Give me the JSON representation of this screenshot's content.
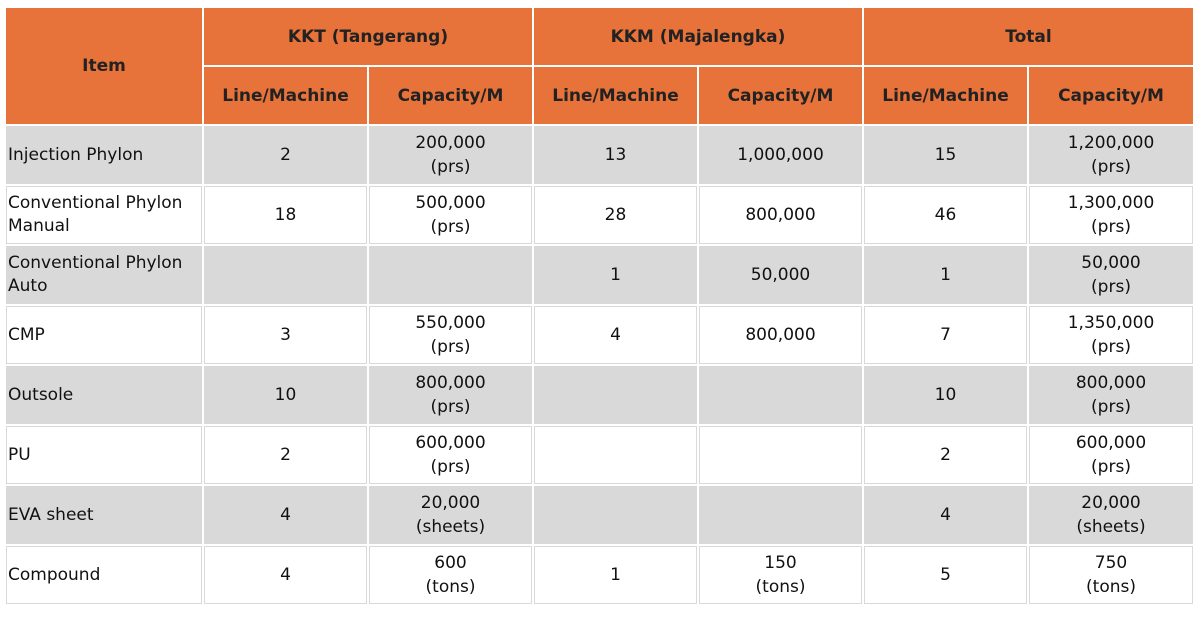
{
  "header": {
    "item": "Item",
    "groups": [
      "KKT (Tangerang)",
      "KKM (Majalengka)",
      "Total"
    ],
    "subheaders": [
      "Line/Machine",
      "Capacity/M",
      "Line/Machine",
      "Capacity/M",
      "Line/Machine",
      "Capacity/M"
    ]
  },
  "table": {
    "rows": [
      [
        "Injection Phylon",
        "2",
        [
          "200,000",
          "(prs)"
        ],
        "13",
        "1,000,000",
        "15",
        [
          "1,200,000",
          "(prs)"
        ]
      ],
      [
        "Conventional Phylon Manual",
        "18",
        [
          "500,000",
          "(prs)"
        ],
        "28",
        "800,000",
        "46",
        [
          "1,300,000",
          "(prs)"
        ]
      ],
      [
        "Conventional Phylon Auto",
        null,
        null,
        "1",
        "50,000",
        "1",
        [
          "50,000",
          "(prs)"
        ]
      ],
      [
        "CMP",
        "3",
        [
          "550,000",
          "(prs)"
        ],
        "4",
        "800,000",
        "7",
        [
          "1,350,000",
          "(prs)"
        ]
      ],
      [
        "Outsole",
        "10",
        [
          "800,000",
          "(prs)"
        ],
        null,
        null,
        "10",
        [
          "800,000",
          "(prs)"
        ]
      ],
      [
        "PU",
        "2",
        [
          "600,000",
          "(prs)"
        ],
        null,
        null,
        "2",
        [
          "600,000",
          "(prs)"
        ]
      ],
      [
        "EVA sheet",
        "4",
        [
          "20,000",
          "(sheets)"
        ],
        null,
        null,
        "4",
        [
          "20,000",
          "(sheets)"
        ]
      ],
      [
        "Compound",
        "4",
        [
          "600",
          "(tons)"
        ],
        "1",
        [
          "150",
          "(tons)"
        ],
        "5",
        [
          "750",
          "(tons)"
        ]
      ]
    ]
  }
}
